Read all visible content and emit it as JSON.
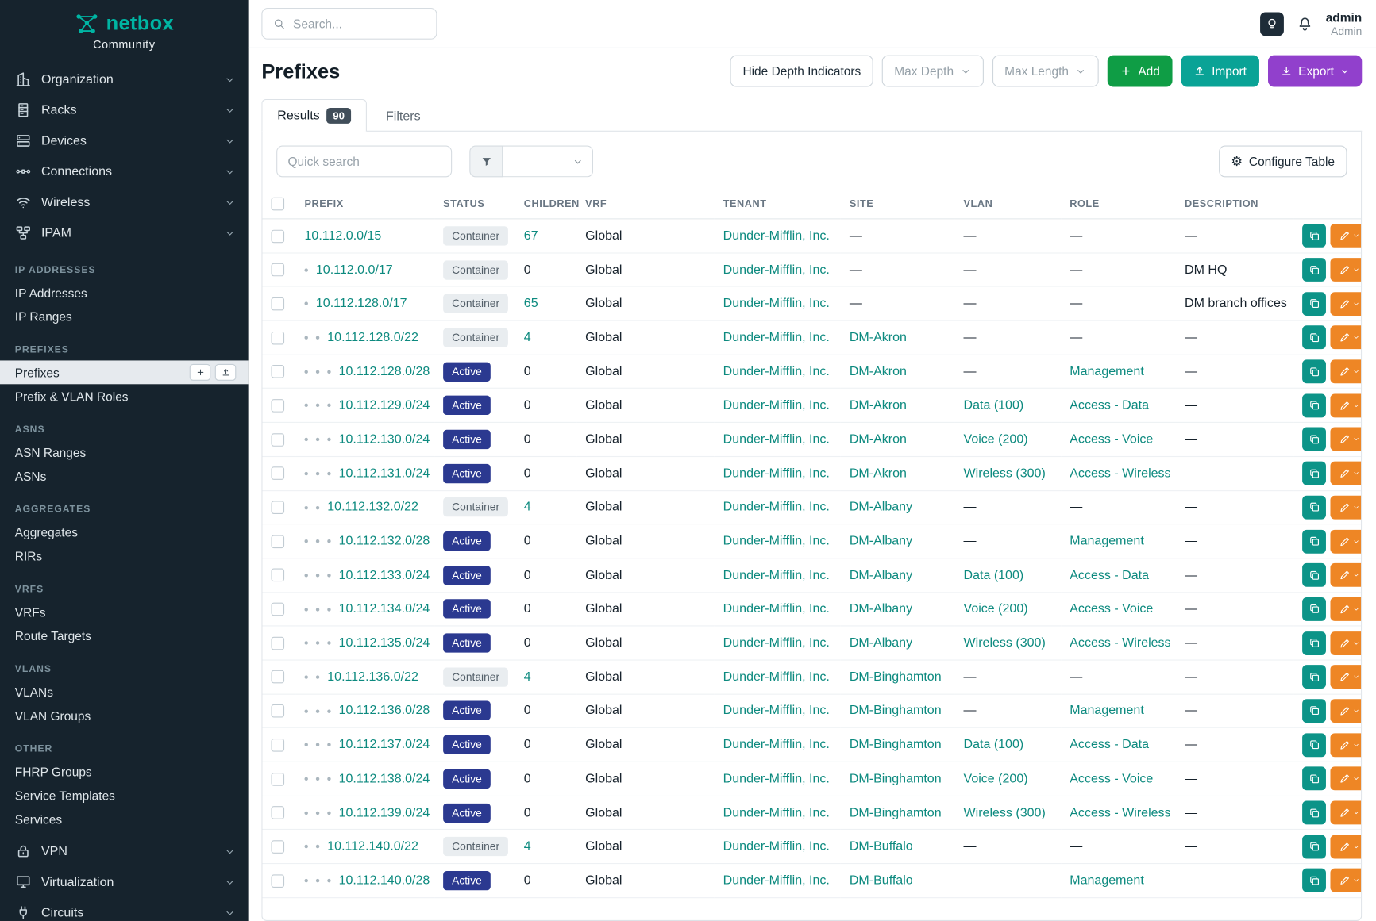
{
  "colors": {
    "brand_teal": "#00b5a3",
    "sidebar_bg": "#16232d",
    "link_teal": "#0d8a7f",
    "active_badge_blue": "#2b3990",
    "container_badge_gray": "#e9edf0",
    "add_green": "#0f9d45",
    "import_teal": "#0aa396",
    "export_purple": "#9140cc",
    "edit_orange": "#ee8625",
    "clone_teal": "#0c9488"
  },
  "sidebar": {
    "brand": "netbox",
    "subtitle": "Community",
    "active_item": "Prefixes",
    "menu": [
      {
        "label": "Organization",
        "icon": "building"
      },
      {
        "label": "Racks",
        "icon": "rack"
      },
      {
        "label": "Devices",
        "icon": "devices"
      },
      {
        "label": "Connections",
        "icon": "connections"
      },
      {
        "label": "Wireless",
        "icon": "wireless"
      },
      {
        "label": "IPAM",
        "icon": "ipam"
      }
    ],
    "sections": [
      {
        "heading": "IP Addresses",
        "items": [
          "IP Addresses",
          "IP Ranges"
        ]
      },
      {
        "heading": "Prefixes",
        "items": [
          "Prefixes",
          "Prefix & VLAN Roles"
        ]
      },
      {
        "heading": "ASNs",
        "items": [
          "ASN Ranges",
          "ASNs"
        ]
      },
      {
        "heading": "Aggregates",
        "items": [
          "Aggregates",
          "RIRs"
        ]
      },
      {
        "heading": "VRFs",
        "items": [
          "VRFs",
          "Route Targets"
        ]
      },
      {
        "heading": "VLANs",
        "items": [
          "VLANs",
          "VLAN Groups"
        ]
      },
      {
        "heading": "Other",
        "items": [
          "FHRP Groups",
          "Service Templates",
          "Services"
        ]
      }
    ],
    "menu_bottom": [
      {
        "label": "VPN",
        "icon": "vpn"
      },
      {
        "label": "Virtualization",
        "icon": "virtualization"
      },
      {
        "label": "Circuits",
        "icon": "circuits"
      }
    ]
  },
  "topbar": {
    "search_placeholder": "Search...",
    "user_name": "admin",
    "user_role": "Admin"
  },
  "page": {
    "title": "Prefixes",
    "toolbar": {
      "hide_depth": "Hide Depth Indicators",
      "max_depth": "Max Depth",
      "max_length": "Max Length",
      "add": "Add",
      "import": "Import",
      "export": "Export"
    },
    "tabs": [
      {
        "label": "Results",
        "badge": "90",
        "active": true
      },
      {
        "label": "Filters",
        "active": false
      }
    ],
    "quick_search_placeholder": "Quick search",
    "configure_table": "Configure Table"
  },
  "table": {
    "columns": [
      "Prefix",
      "Status",
      "Children",
      "VRF",
      "Tenant",
      "Site",
      "VLAN",
      "Role",
      "Description"
    ],
    "rows": [
      {
        "depth": 0,
        "prefix": "10.112.0.0/15",
        "status": "Container",
        "children": "67",
        "vrf": "Global",
        "tenant": "Dunder-Mifflin, Inc.",
        "site": "—",
        "vlan": "—",
        "role": "—",
        "description": "—"
      },
      {
        "depth": 1,
        "prefix": "10.112.0.0/17",
        "status": "Container",
        "children": "0",
        "vrf": "Global",
        "tenant": "Dunder-Mifflin, Inc.",
        "site": "—",
        "vlan": "—",
        "role": "—",
        "description": "DM HQ"
      },
      {
        "depth": 1,
        "prefix": "10.112.128.0/17",
        "status": "Container",
        "children": "65",
        "vrf": "Global",
        "tenant": "Dunder-Mifflin, Inc.",
        "site": "—",
        "vlan": "—",
        "role": "—",
        "description": "DM branch offices"
      },
      {
        "depth": 2,
        "prefix": "10.112.128.0/22",
        "status": "Container",
        "children": "4",
        "vrf": "Global",
        "tenant": "Dunder-Mifflin, Inc.",
        "site": "DM-Akron",
        "vlan": "—",
        "role": "—",
        "description": "—"
      },
      {
        "depth": 3,
        "prefix": "10.112.128.0/28",
        "status": "Active",
        "children": "0",
        "vrf": "Global",
        "tenant": "Dunder-Mifflin, Inc.",
        "site": "DM-Akron",
        "vlan": "—",
        "role": "Management",
        "description": "—"
      },
      {
        "depth": 3,
        "prefix": "10.112.129.0/24",
        "status": "Active",
        "children": "0",
        "vrf": "Global",
        "tenant": "Dunder-Mifflin, Inc.",
        "site": "DM-Akron",
        "vlan": "Data (100)",
        "role": "Access - Data",
        "description": "—"
      },
      {
        "depth": 3,
        "prefix": "10.112.130.0/24",
        "status": "Active",
        "children": "0",
        "vrf": "Global",
        "tenant": "Dunder-Mifflin, Inc.",
        "site": "DM-Akron",
        "vlan": "Voice (200)",
        "role": "Access - Voice",
        "description": "—"
      },
      {
        "depth": 3,
        "prefix": "10.112.131.0/24",
        "status": "Active",
        "children": "0",
        "vrf": "Global",
        "tenant": "Dunder-Mifflin, Inc.",
        "site": "DM-Akron",
        "vlan": "Wireless (300)",
        "role": "Access - Wireless",
        "description": "—"
      },
      {
        "depth": 2,
        "prefix": "10.112.132.0/22",
        "status": "Container",
        "children": "4",
        "vrf": "Global",
        "tenant": "Dunder-Mifflin, Inc.",
        "site": "DM-Albany",
        "vlan": "—",
        "role": "—",
        "description": "—"
      },
      {
        "depth": 3,
        "prefix": "10.112.132.0/28",
        "status": "Active",
        "children": "0",
        "vrf": "Global",
        "tenant": "Dunder-Mifflin, Inc.",
        "site": "DM-Albany",
        "vlan": "—",
        "role": "Management",
        "description": "—"
      },
      {
        "depth": 3,
        "prefix": "10.112.133.0/24",
        "status": "Active",
        "children": "0",
        "vrf": "Global",
        "tenant": "Dunder-Mifflin, Inc.",
        "site": "DM-Albany",
        "vlan": "Data (100)",
        "role": "Access - Data",
        "description": "—"
      },
      {
        "depth": 3,
        "prefix": "10.112.134.0/24",
        "status": "Active",
        "children": "0",
        "vrf": "Global",
        "tenant": "Dunder-Mifflin, Inc.",
        "site": "DM-Albany",
        "vlan": "Voice (200)",
        "role": "Access - Voice",
        "description": "—"
      },
      {
        "depth": 3,
        "prefix": "10.112.135.0/24",
        "status": "Active",
        "children": "0",
        "vrf": "Global",
        "tenant": "Dunder-Mifflin, Inc.",
        "site": "DM-Albany",
        "vlan": "Wireless (300)",
        "role": "Access - Wireless",
        "description": "—"
      },
      {
        "depth": 2,
        "prefix": "10.112.136.0/22",
        "status": "Container",
        "children": "4",
        "vrf": "Global",
        "tenant": "Dunder-Mifflin, Inc.",
        "site": "DM-Binghamton",
        "vlan": "—",
        "role": "—",
        "description": "—"
      },
      {
        "depth": 3,
        "prefix": "10.112.136.0/28",
        "status": "Active",
        "children": "0",
        "vrf": "Global",
        "tenant": "Dunder-Mifflin, Inc.",
        "site": "DM-Binghamton",
        "vlan": "—",
        "role": "Management",
        "description": "—"
      },
      {
        "depth": 3,
        "prefix": "10.112.137.0/24",
        "status": "Active",
        "children": "0",
        "vrf": "Global",
        "tenant": "Dunder-Mifflin, Inc.",
        "site": "DM-Binghamton",
        "vlan": "Data (100)",
        "role": "Access - Data",
        "description": "—"
      },
      {
        "depth": 3,
        "prefix": "10.112.138.0/24",
        "status": "Active",
        "children": "0",
        "vrf": "Global",
        "tenant": "Dunder-Mifflin, Inc.",
        "site": "DM-Binghamton",
        "vlan": "Voice (200)",
        "role": "Access - Voice",
        "description": "—"
      },
      {
        "depth": 3,
        "prefix": "10.112.139.0/24",
        "status": "Active",
        "children": "0",
        "vrf": "Global",
        "tenant": "Dunder-Mifflin, Inc.",
        "site": "DM-Binghamton",
        "vlan": "Wireless (300)",
        "role": "Access - Wireless",
        "description": "—"
      },
      {
        "depth": 2,
        "prefix": "10.112.140.0/22",
        "status": "Container",
        "children": "4",
        "vrf": "Global",
        "tenant": "Dunder-Mifflin, Inc.",
        "site": "DM-Buffalo",
        "vlan": "—",
        "role": "—",
        "description": "—"
      },
      {
        "depth": 3,
        "prefix": "10.112.140.0/28",
        "status": "Active",
        "children": "0",
        "vrf": "Global",
        "tenant": "Dunder-Mifflin, Inc.",
        "site": "DM-Buffalo",
        "vlan": "—",
        "role": "Management",
        "description": "—"
      }
    ]
  }
}
